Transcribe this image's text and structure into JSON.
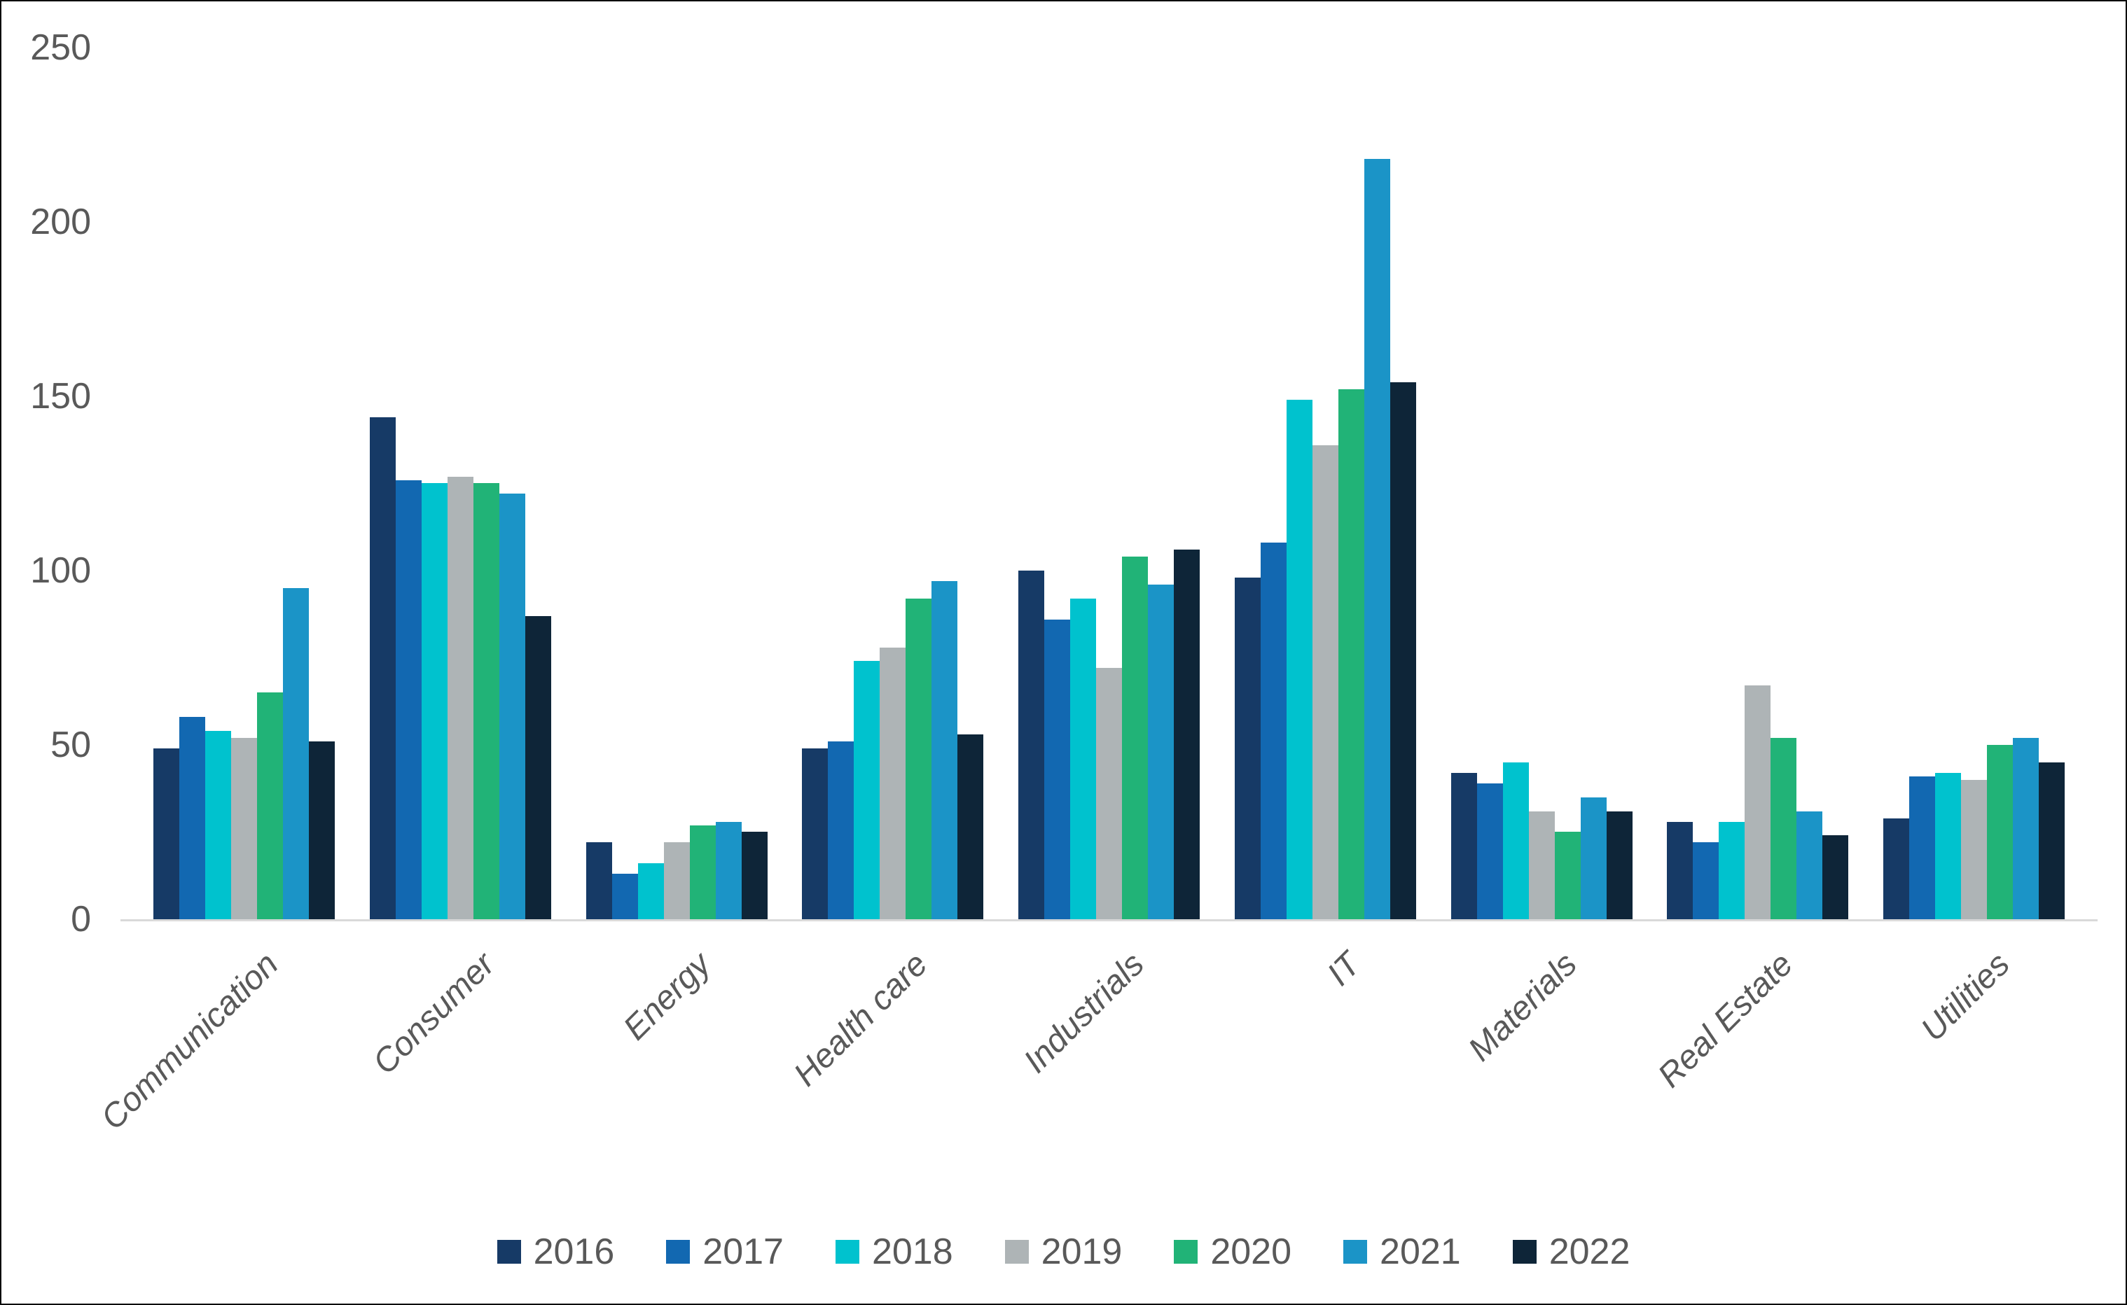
{
  "chart_data": {
    "type": "bar",
    "title": "",
    "xlabel": "",
    "ylabel": "",
    "categories": [
      "Communication",
      "Consumer",
      "Energy",
      "Health care",
      "Industrials",
      "IT",
      "Materials",
      "Real Estate",
      "Utilities"
    ],
    "series": [
      {
        "name": "2016",
        "color": "#163a66",
        "values": [
          49,
          144,
          22,
          49,
          100,
          98,
          42,
          28,
          29
        ]
      },
      {
        "name": "2017",
        "color": "#1268b1",
        "values": [
          58,
          126,
          13,
          51,
          86,
          108,
          39,
          22,
          41
        ]
      },
      {
        "name": "2018",
        "color": "#00c2ce",
        "values": [
          54,
          125,
          16,
          74,
          92,
          149,
          45,
          28,
          42
        ]
      },
      {
        "name": "2019",
        "color": "#aeb4b6",
        "values": [
          52,
          127,
          22,
          78,
          72,
          136,
          31,
          67,
          40
        ]
      },
      {
        "name": "2020",
        "color": "#21b377",
        "values": [
          65,
          125,
          27,
          92,
          104,
          152,
          25,
          52,
          50
        ]
      },
      {
        "name": "2021",
        "color": "#1b94c7",
        "values": [
          95,
          122,
          28,
          97,
          96,
          218,
          35,
          31,
          52
        ]
      },
      {
        "name": "2022",
        "color": "#0e2538",
        "values": [
          51,
          87,
          25,
          53,
          106,
          154,
          31,
          24,
          45
        ]
      }
    ],
    "ylim": [
      0,
      250
    ],
    "yticks": [
      0,
      50,
      100,
      150,
      200,
      250
    ],
    "grid": false,
    "legend_position": "bottom",
    "axis_line_color": "#d9d9d9",
    "text_color": "#595959"
  }
}
